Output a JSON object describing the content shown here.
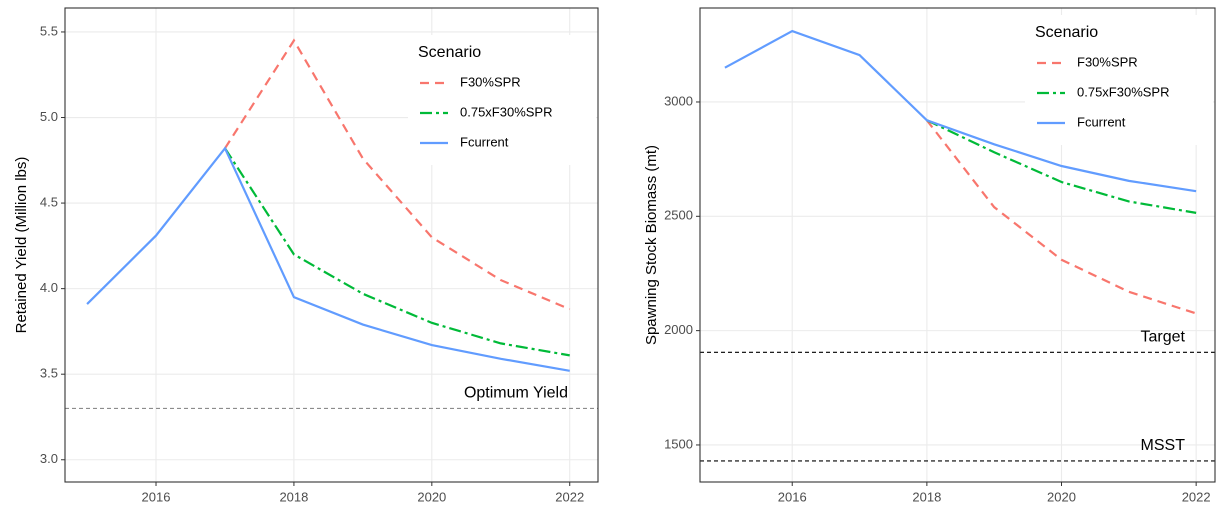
{
  "chart_data": [
    {
      "type": "line",
      "y_label": "Retained Yield (Million lbs)",
      "x": [
        2015,
        2016,
        2017,
        2018,
        2019,
        2020,
        2021,
        2022
      ],
      "xlim": [
        2014.68,
        2022.41
      ],
      "xticks": [
        2016,
        2018,
        2020,
        2022
      ],
      "ylim": [
        2.87,
        5.64
      ],
      "yticks": [
        {
          "value": 3,
          "label": "3.0"
        },
        3.5,
        {
          "value": 4,
          "label": "4.0"
        },
        4.5,
        {
          "value": 5,
          "label": "5.0"
        },
        5.5
      ],
      "grid": true,
      "legend": {
        "title": "Scenario",
        "position": "top-right"
      },
      "series": [
        {
          "name": "F30%SPR",
          "color": "#F8766D",
          "dash": "dashed",
          "values": [
            null,
            null,
            4.82,
            5.45,
            4.76,
            4.3,
            4.05,
            3.88
          ]
        },
        {
          "name": "0.75xF30%SPR",
          "color": "#00BA38",
          "dash": "dashdot",
          "values": [
            null,
            null,
            4.82,
            4.2,
            3.97,
            3.8,
            3.68,
            3.61
          ]
        },
        {
          "name": "Fcurrent",
          "color": "#619CFF",
          "dash": "solid",
          "values": [
            3.91,
            4.31,
            4.82,
            3.95,
            3.79,
            3.67,
            3.59,
            3.52
          ]
        }
      ],
      "hlines": [
        {
          "value": 3.3,
          "label": "Optimum Yield",
          "color": "#8c8c8c"
        }
      ]
    },
    {
      "type": "line",
      "y_label": "Spawning Stock Biomass (mt)",
      "x": [
        2015,
        2016,
        2017,
        2018,
        2019,
        2020,
        2021,
        2022
      ],
      "xlim": [
        2014.63,
        2022.28
      ],
      "xticks": [
        2016,
        2018,
        2020,
        2022
      ],
      "ylim": [
        1338,
        3411
      ],
      "yticks": [
        1500,
        2000,
        2500,
        3000
      ],
      "grid": true,
      "legend": {
        "title": "Scenario",
        "position": "top-right"
      },
      "series": [
        {
          "name": "F30%SPR",
          "color": "#F8766D",
          "dash": "dashed",
          "values": [
            null,
            null,
            null,
            2920,
            2540,
            2310,
            2170,
            2075
          ]
        },
        {
          "name": "0.75xF30%SPR",
          "color": "#00BA38",
          "dash": "dashdot",
          "values": [
            null,
            null,
            null,
            2920,
            2780,
            2650,
            2565,
            2515
          ]
        },
        {
          "name": "Fcurrent",
          "color": "#619CFF",
          "dash": "solid",
          "values": [
            3150,
            3310,
            3205,
            2920,
            2815,
            2720,
            2655,
            2610
          ]
        }
      ],
      "hlines": [
        {
          "value": 1905,
          "label": "Target",
          "color": "#000000"
        },
        {
          "value": 1430,
          "label": "MSST",
          "color": "#000000"
        }
      ]
    }
  ]
}
